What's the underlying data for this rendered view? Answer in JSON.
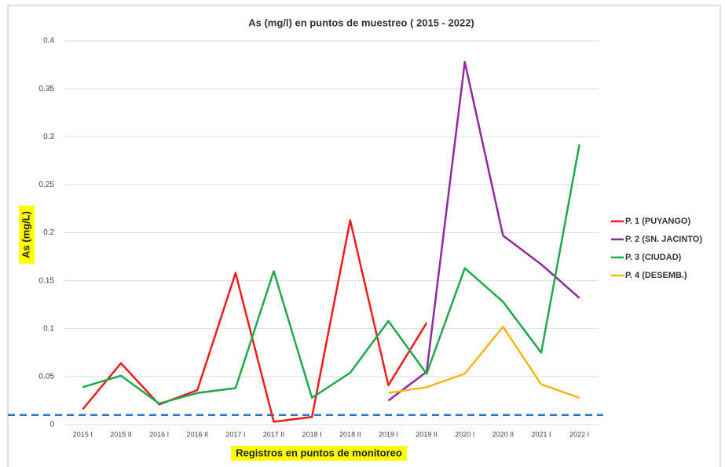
{
  "chart_data": {
    "type": "line",
    "title": "As (mg/l) en puntos de muestreo ( 2015 - 2022)",
    "x_label": "Registros en puntos de monitoreo",
    "y_label": "As (mg/L)",
    "categories": [
      "2015 I",
      "2015 II",
      "2016 I",
      "2016 II",
      "2017 I",
      "2017 II",
      "2018 I",
      "2018 II",
      "2019 I",
      "2019 II",
      "2020 I",
      "2020 II",
      "2021 I",
      "2022 I"
    ],
    "series": [
      {
        "name": "P. 1 (PUYANGO)",
        "color": "#ee1c1c",
        "values": [
          0.016,
          0.064,
          0.021,
          0.036,
          0.158,
          0.003,
          0.008,
          0.213,
          0.041,
          0.106,
          null,
          null,
          null,
          null
        ]
      },
      {
        "name": "P. 2 (SN. JACINTO)",
        "color": "#8e2a9c",
        "values": [
          null,
          null,
          null,
          null,
          null,
          null,
          null,
          null,
          0.025,
          0.055,
          0.378,
          0.197,
          0.167,
          0.132
        ]
      },
      {
        "name": "P. 3 (CIUDAD)",
        "color": "#1fa94a",
        "values": [
          0.039,
          0.051,
          0.022,
          0.033,
          0.038,
          0.16,
          0.028,
          0.054,
          0.108,
          0.053,
          0.163,
          0.128,
          0.075,
          0.292
        ]
      },
      {
        "name": "P. 4 (DESEMB.)",
        "color": "#f7b718",
        "values": [
          null,
          null,
          null,
          null,
          null,
          null,
          null,
          null,
          0.033,
          0.039,
          0.053,
          0.102,
          0.042,
          0.028
        ]
      }
    ],
    "reference_line": {
      "value": 0.01,
      "color": "#2e75c6"
    },
    "ylim": [
      0,
      0.4
    ],
    "yticks": [
      0,
      0.05,
      0.1,
      0.15,
      0.2,
      0.25,
      0.3,
      0.35,
      0.4
    ],
    "grid": true,
    "legend": "right"
  }
}
